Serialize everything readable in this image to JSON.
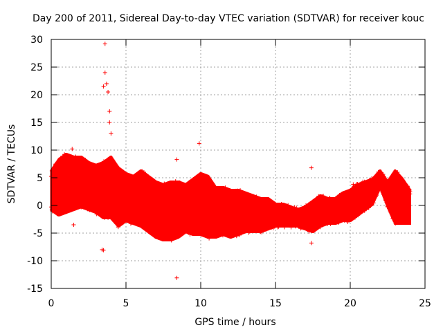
{
  "chart_data": {
    "type": "scatter",
    "title": "Day 200 of 2011, Sidereal Day-to-day VTEC variation (SDTVAR) for receiver kouc",
    "xlabel": "GPS time / hours",
    "ylabel": "SDTVAR / TECUs",
    "xlim": [
      0,
      25
    ],
    "ylim": [
      -15,
      30
    ],
    "xticks": [
      0,
      5,
      10,
      15,
      20,
      25
    ],
    "yticks": [
      -15,
      -10,
      -5,
      0,
      5,
      10,
      15,
      20,
      25,
      30
    ],
    "xtick_labels": [
      "0",
      "5",
      "10",
      "15",
      "20",
      "25"
    ],
    "ytick_labels": [
      "-15",
      "-10",
      "-5",
      "0",
      "5",
      "10",
      "15",
      "20",
      "25",
      "30"
    ],
    "grid": true,
    "marker": "+",
    "color": "#ff0000",
    "envelope": {
      "x": [
        0.0,
        0.5,
        1.0,
        1.5,
        2.0,
        2.5,
        3.0,
        3.5,
        4.0,
        4.5,
        5.0,
        5.5,
        6.0,
        6.5,
        7.0,
        7.5,
        8.0,
        8.5,
        9.0,
        9.5,
        10.0,
        10.5,
        11.0,
        11.5,
        12.0,
        12.5,
        13.0,
        13.5,
        14.0,
        14.5,
        15.0,
        15.5,
        16.0,
        16.5,
        17.0,
        17.5,
        18.0,
        18.5,
        19.0,
        19.5,
        20.0,
        20.5,
        21.0,
        21.5,
        22.0,
        22.5,
        23.0,
        23.5,
        24.0
      ],
      "upper": [
        6.5,
        8.5,
        9.5,
        9.0,
        9.0,
        8.0,
        7.5,
        8.0,
        9.0,
        7.0,
        6.0,
        5.5,
        6.5,
        5.5,
        4.5,
        4.0,
        4.5,
        4.5,
        4.0,
        5.0,
        6.0,
        5.5,
        3.5,
        3.5,
        3.0,
        3.0,
        2.5,
        2.0,
        1.5,
        1.5,
        0.5,
        0.5,
        0.0,
        -0.5,
        0.0,
        1.0,
        2.0,
        1.5,
        1.5,
        2.5,
        3.0,
        4.0,
        4.5,
        5.0,
        6.5,
        4.5,
        6.5,
        5.0,
        3.0
      ],
      "lower": [
        -1.0,
        -2.0,
        -1.5,
        -1.0,
        -0.5,
        -1.0,
        -1.5,
        -2.5,
        -2.5,
        -4.0,
        -3.0,
        -3.5,
        -4.0,
        -5.0,
        -6.0,
        -6.5,
        -6.5,
        -6.0,
        -5.0,
        -5.5,
        -5.5,
        -6.0,
        -6.0,
        -5.5,
        -6.0,
        -5.5,
        -5.0,
        -5.0,
        -5.0,
        -4.5,
        -4.0,
        -4.0,
        -4.0,
        -4.0,
        -4.5,
        -5.0,
        -4.0,
        -3.5,
        -3.5,
        -3.0,
        -3.0,
        -2.0,
        -1.0,
        0.0,
        3.0,
        -0.5,
        -3.5,
        -3.5,
        -3.5
      ]
    },
    "notable_points": [
      {
        "x": 3.6,
        "y": 29.2
      },
      {
        "x": 3.6,
        "y": 24.0
      },
      {
        "x": 3.7,
        "y": 22.0
      },
      {
        "x": 3.5,
        "y": 21.5
      },
      {
        "x": 3.8,
        "y": 20.5
      },
      {
        "x": 3.9,
        "y": 17.0
      },
      {
        "x": 3.9,
        "y": 15.0
      },
      {
        "x": 4.0,
        "y": 13.0
      },
      {
        "x": 9.9,
        "y": 11.2
      },
      {
        "x": 1.4,
        "y": 10.2
      },
      {
        "x": 8.4,
        "y": 8.3
      },
      {
        "x": 1.5,
        "y": -3.5
      },
      {
        "x": 3.4,
        "y": -8.0
      },
      {
        "x": 3.5,
        "y": -8.1
      },
      {
        "x": 8.4,
        "y": -13.1
      },
      {
        "x": 17.4,
        "y": 6.8
      },
      {
        "x": 17.4,
        "y": -6.8
      },
      {
        "x": 20.2,
        "y": 3.8
      }
    ]
  }
}
